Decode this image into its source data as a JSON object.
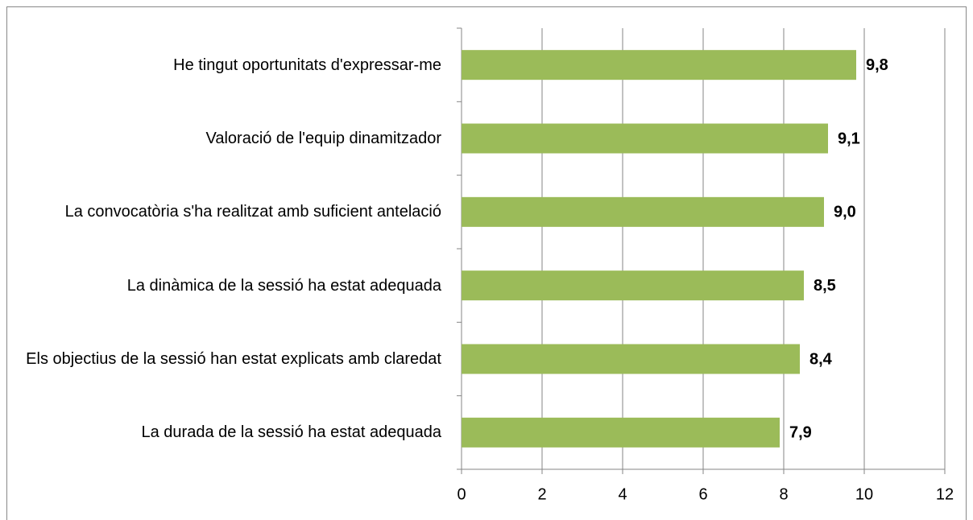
{
  "chart_data": {
    "type": "bar",
    "orientation": "horizontal",
    "categories": [
      "He tingut oportunitats d'expressar-me",
      "Valoració de l'equip dinamitzador",
      "La convocatòria s'ha realitzat amb suficient antelació",
      "La dinàmica de la sessió ha estat adequada",
      "Els objectius de la sessió han estat explicats amb claredat",
      "La durada de la sessió ha estat adequada"
    ],
    "values": [
      9.8,
      9.1,
      9.0,
      8.5,
      8.4,
      7.9
    ],
    "value_labels": [
      "9,8",
      "9,1",
      "9,0",
      "8,5",
      "8,4",
      "7,9"
    ],
    "color": "#9bbb59",
    "xlim": [
      0,
      12
    ],
    "xticks": [
      0,
      2,
      4,
      6,
      8,
      10,
      12
    ],
    "grid": true
  }
}
